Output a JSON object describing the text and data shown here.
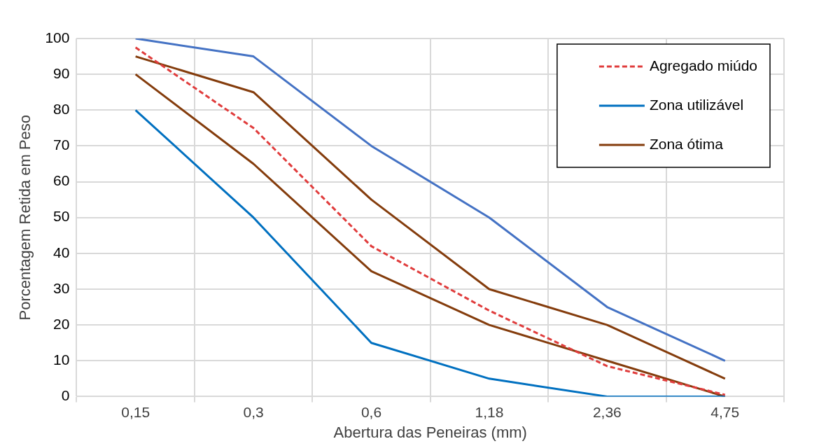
{
  "chart_data": {
    "type": "line",
    "xlabel": "Abertura das Peneiras (mm)",
    "ylabel": "Porcentagem Retida em Peso",
    "categories": [
      "0,15",
      "0,3",
      "0,6",
      "1,18",
      "2,36",
      "4,75"
    ],
    "series": [
      {
        "name": "Agregado miúdo",
        "color": "#e03c3c",
        "line_style": "dashed",
        "values": [
          97.5,
          75,
          42,
          24,
          8.5,
          0.5
        ]
      },
      {
        "name": "Zona utilizável",
        "color": "#0070c0",
        "values": [
          80,
          50,
          15,
          5,
          0,
          0
        ]
      },
      {
        "color": "#4472c4",
        "values": [
          100,
          95,
          70,
          50,
          25,
          10
        ]
      },
      {
        "name": "Zona ótima",
        "color": "#843c0c",
        "values": [
          90,
          65,
          35,
          20,
          10,
          0
        ]
      },
      {
        "color": "#843c0c",
        "values": [
          95,
          85,
          55,
          30,
          20,
          5
        ]
      }
    ],
    "ylim": [
      0,
      100
    ],
    "yticks": [
      0,
      10,
      20,
      30,
      40,
      50,
      60,
      70,
      80,
      90,
      100
    ],
    "grid": true,
    "legend": "top right",
    "marker": "none"
  }
}
